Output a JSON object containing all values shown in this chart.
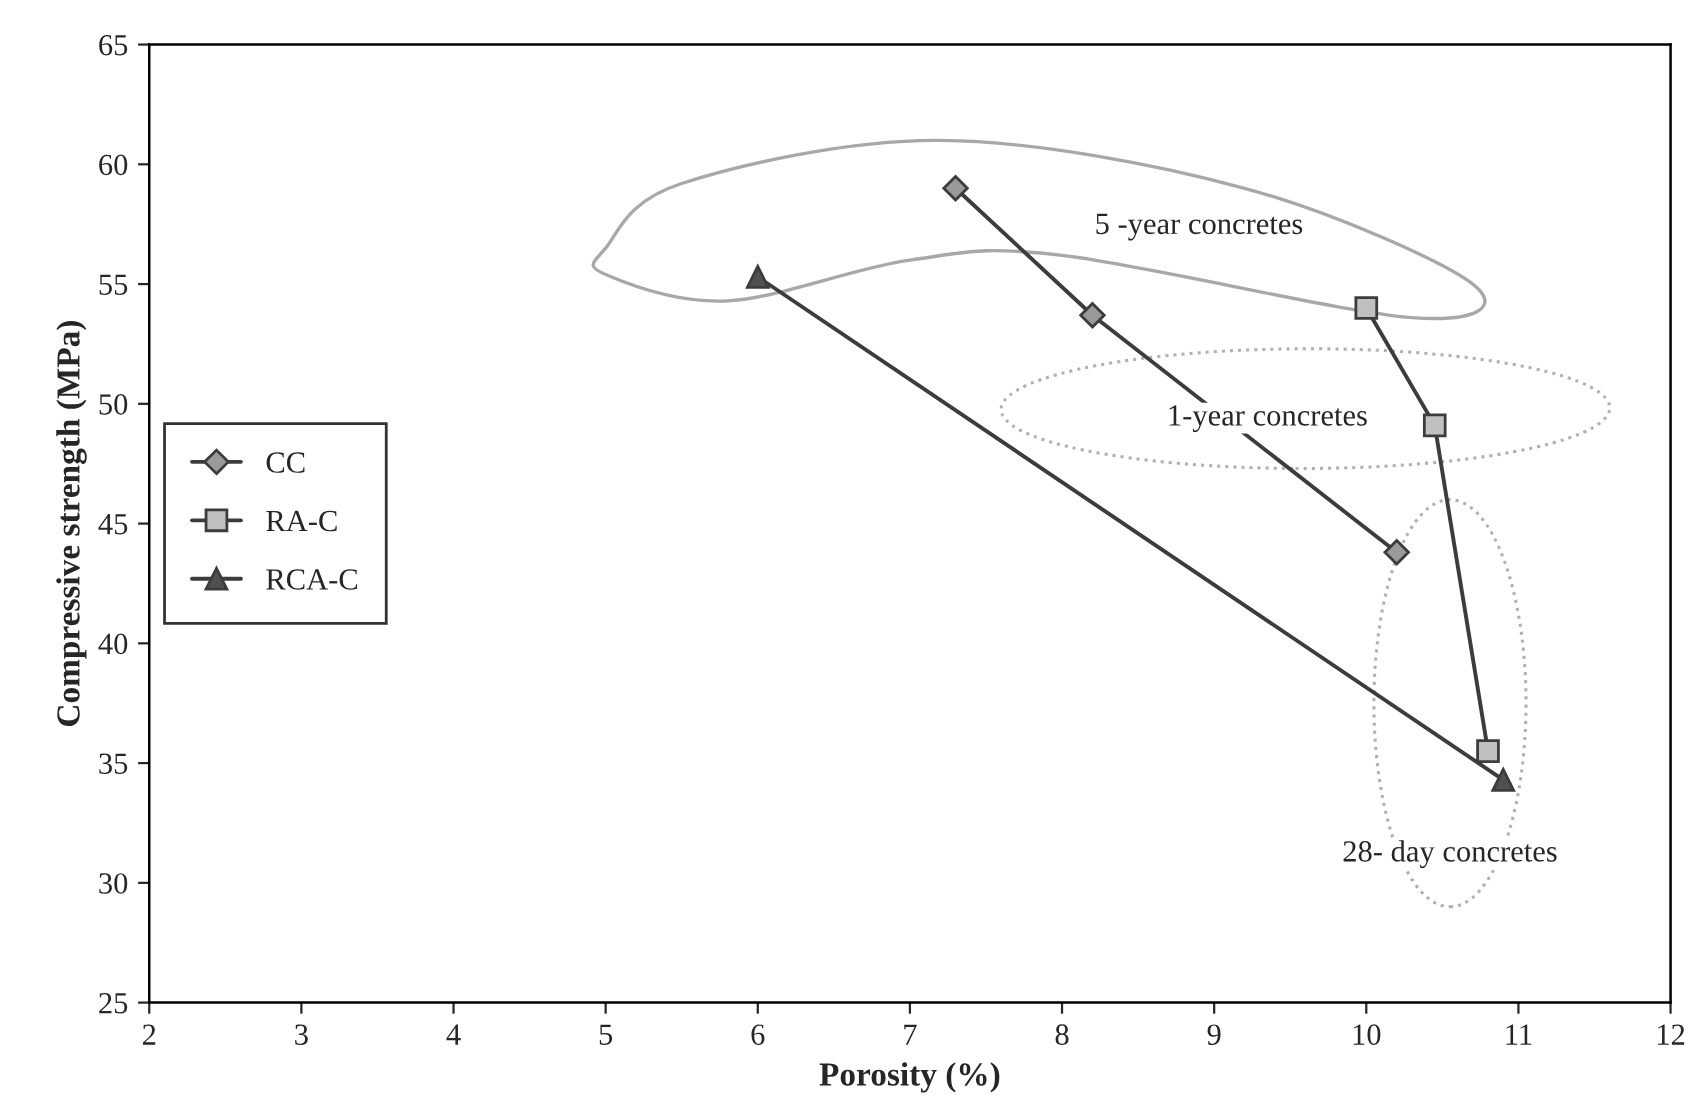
{
  "chart_data": {
    "type": "line",
    "xlabel": "Porosity (%)",
    "ylabel": "Compressive strength (MPa)",
    "series": [
      {
        "name": "CC",
        "color": "#9a9a9a",
        "marker": "diamond",
        "x": [
          7.3,
          8.2,
          10.2
        ],
        "values": [
          59,
          53.7,
          43.8
        ]
      },
      {
        "name": "RA-C",
        "color": "#c0c0c0",
        "marker": "square",
        "x": [
          10.0,
          10.45,
          10.8
        ],
        "values": [
          54,
          49.1,
          35.5
        ]
      },
      {
        "name": "RCA-C",
        "color": "#505050",
        "marker": "triangle",
        "x": [
          6.0,
          10.9
        ],
        "values": [
          55.3,
          34.3
        ]
      }
    ],
    "xlim": [
      2,
      12
    ],
    "xticks": [
      2,
      3,
      4,
      5,
      6,
      7,
      8,
      9,
      10,
      11,
      12
    ],
    "ylim": [
      25,
      65
    ],
    "yticks": [
      25,
      30,
      35,
      40,
      45,
      50,
      55,
      60,
      65
    ],
    "grid": false,
    "legend": "left",
    "line_style": "solid",
    "annotations": [
      "5 -year concretes",
      "1-year concretes",
      "28- day concretes"
    ]
  }
}
